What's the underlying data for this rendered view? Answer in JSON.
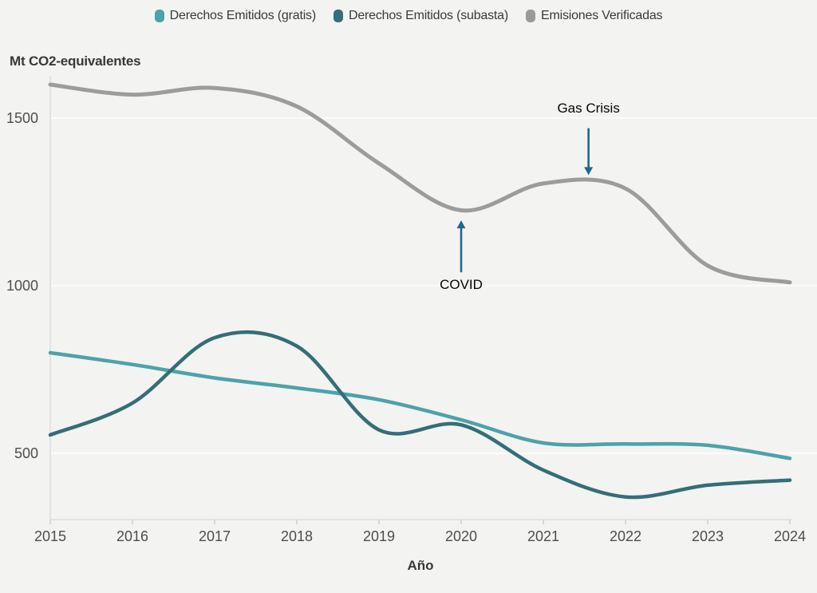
{
  "page": {
    "background": "#f3f3f2"
  },
  "legend": {
    "items": [
      {
        "label": "Derechos Emitidos (gratis)",
        "color": "#4da2ab"
      },
      {
        "label": "Derechos Emitidos (subasta)",
        "color": "#346e78"
      },
      {
        "label": "Emisiones Verificadas",
        "color": "#9a9a9a"
      }
    ]
  },
  "chart_data": {
    "type": "line",
    "title": "Mt CO2-equivalentes",
    "xlabel": "Año",
    "ylabel": "Mt CO2-equivalentes",
    "x": [
      2015,
      2016,
      2017,
      2018,
      2019,
      2020,
      2021,
      2022,
      2023,
      2024
    ],
    "series": [
      {
        "name": "Derechos Emitidos (gratis)",
        "color": "#4da2ab",
        "width": 4.5,
        "values": [
          800,
          765,
          725,
          695,
          660,
          600,
          531,
          528,
          524,
          485
        ]
      },
      {
        "name": "Derechos Emitidos (subasta)",
        "color": "#346e78",
        "width": 4.5,
        "values": [
          555,
          650,
          845,
          820,
          570,
          585,
          450,
          370,
          405,
          420
        ]
      },
      {
        "name": "Emisiones Verificadas",
        "color": "#9c9c9c",
        "width": 5,
        "values": [
          1600,
          1570,
          1590,
          1535,
          1365,
          1225,
          1305,
          1290,
          1060,
          1010
        ]
      }
    ],
    "y_ticks": [
      500,
      1000,
      1500
    ],
    "ylim": [
      300,
      1650
    ],
    "grid": "horizontal",
    "legend_position": "top-center",
    "annotations": [
      {
        "label": "COVID",
        "x": 2020,
        "direction": "up",
        "arrow_from_value": 1040,
        "arrow_to_value": 1195,
        "text_value": 1000
      },
      {
        "label": "Gas Crisis",
        "x": 2021.55,
        "direction": "down",
        "arrow_from_value": 1470,
        "arrow_to_value": 1330,
        "text_value": 1527
      }
    ],
    "annotation_arrow_color": "#21688c"
  }
}
